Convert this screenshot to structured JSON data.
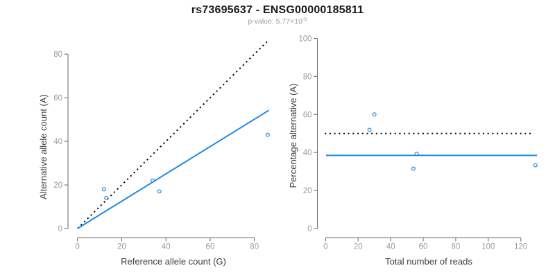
{
  "header": {
    "title": "rs73695637 - ENSG00000185811",
    "subtitle": {
      "prefix": "p-value: 5.77×10",
      "exponent": "-5"
    }
  },
  "chart_data": {
    "type": "scatter",
    "title": "rs73695637 - ENSG00000185811",
    "subtitle": "p-value: 5.77x10^-5",
    "grid": false,
    "legend": "none",
    "point_style": "open-circle",
    "accent_color": "#1E88E5",
    "axis_color": "#757575",
    "tick_label_color": "#9b9b9b",
    "axis_title_color": "#3c3c3c",
    "panels": [
      {
        "name": "allele-counts",
        "xlabel": "Reference allele count (G)",
        "ylabel": "Alternative allele count (A)",
        "xlim": [
          0,
          88
        ],
        "ylim": [
          0,
          88
        ],
        "xticks": [
          0,
          20,
          40,
          60,
          80
        ],
        "yticks": [
          0,
          20,
          40,
          60,
          80
        ],
        "points": [
          [
            12,
            18
          ],
          [
            13,
            14
          ],
          [
            34,
            22
          ],
          [
            37,
            17
          ],
          [
            86,
            43
          ]
        ],
        "lines": [
          {
            "id": "identity-line",
            "type": "segment",
            "from": [
              0,
              0
            ],
            "to": [
              86.5,
              86.5
            ],
            "style": "dotted",
            "color": "#000000"
          },
          {
            "id": "fit-line",
            "type": "segment",
            "from": [
              0,
              0
            ],
            "to": [
              86.5,
              54.2
            ],
            "style": "solid",
            "color": "#1E88E5"
          }
        ]
      },
      {
        "name": "percentage-alternative",
        "xlabel": "Total number of reads",
        "ylabel": "Percentage alternative (A)",
        "xlim": [
          0,
          130
        ],
        "ylim": [
          0,
          100
        ],
        "xticks": [
          0,
          20,
          40,
          60,
          80,
          100,
          120
        ],
        "yticks": [
          0,
          20,
          40,
          60,
          80,
          100
        ],
        "points": [
          [
            30,
            60
          ],
          [
            27,
            51.9
          ],
          [
            56,
            39.3
          ],
          [
            54,
            31.5
          ],
          [
            129,
            33.3
          ]
        ],
        "lines": [
          {
            "id": "reference-line-50pct",
            "type": "hline",
            "y": 50,
            "x_range": [
              -0.5,
              128
            ],
            "style": "dotted",
            "color": "#000000"
          },
          {
            "id": "fit-line",
            "type": "hline",
            "y": 38.5,
            "x_range": [
              0.3,
              130
            ],
            "style": "solid",
            "color": "#1E88E5"
          }
        ]
      }
    ]
  }
}
